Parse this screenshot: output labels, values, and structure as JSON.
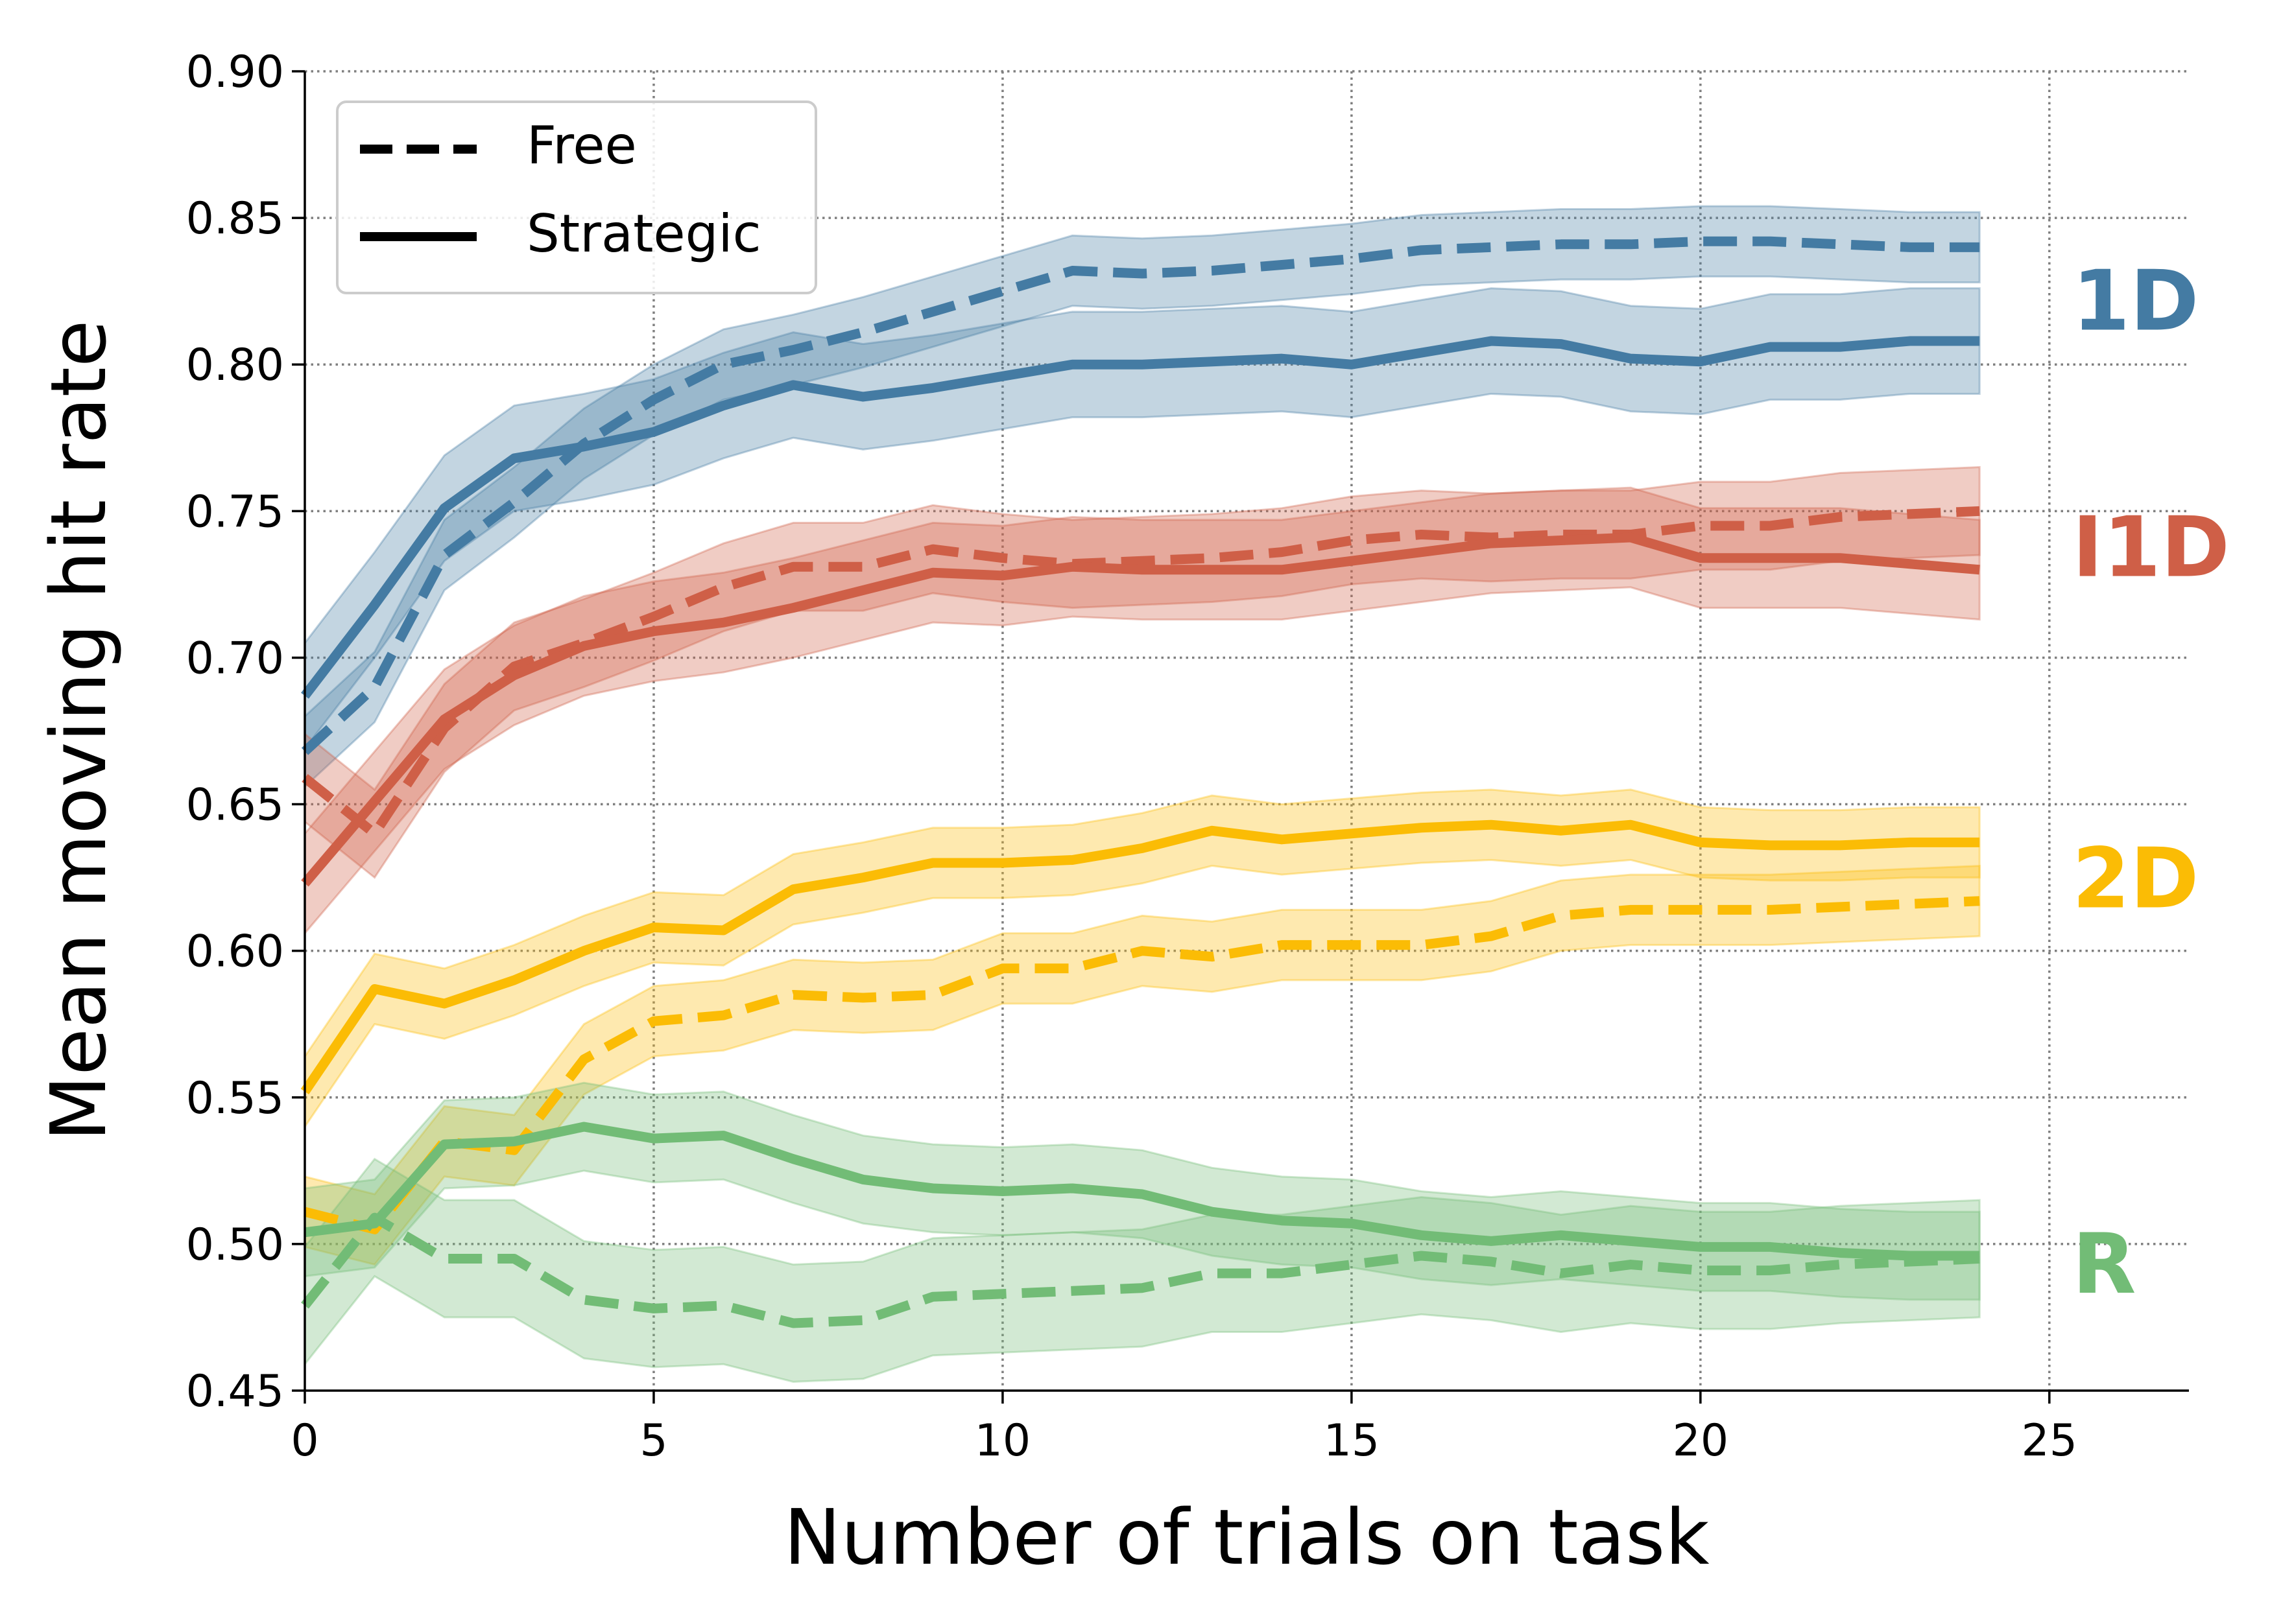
{
  "chart_data": {
    "type": "line",
    "title": "",
    "xlabel": "Number of trials on task",
    "ylabel": "Mean moving hit rate",
    "xlim": [
      0,
      27
    ],
    "ylim": [
      0.45,
      0.9
    ],
    "xticks": [
      0,
      5,
      10,
      15,
      20,
      25
    ],
    "yticks": [
      0.45,
      0.5,
      0.55,
      0.6,
      0.65,
      0.7,
      0.75,
      0.8,
      0.85,
      0.9
    ],
    "xtick_labels": [
      "0",
      "5",
      "10",
      "15",
      "20",
      "25"
    ],
    "ytick_labels": [
      "0.45",
      "0.50",
      "0.55",
      "0.60",
      "0.65",
      "0.70",
      "0.75",
      "0.80",
      "0.85",
      "0.90"
    ],
    "grid": true,
    "legend": {
      "placement": "top-left",
      "entries": [
        {
          "label": "Free",
          "style": "dashed"
        },
        {
          "label": "Strategic",
          "style": "solid"
        }
      ]
    },
    "x": [
      0,
      1,
      2,
      3,
      4,
      5,
      6,
      7,
      8,
      9,
      10,
      11,
      12,
      13,
      14,
      15,
      16,
      17,
      18,
      19,
      20,
      21,
      22,
      23,
      24
    ],
    "groups": [
      {
        "label": "1D",
        "color": "#447ba3",
        "series": [
          {
            "condition": "Free",
            "style": "dashed",
            "values": [
              0.668,
              0.69,
              0.735,
              0.753,
              0.773,
              0.788,
              0.8,
              0.805,
              0.811,
              0.818,
              0.825,
              0.832,
              0.831,
              0.832,
              0.834,
              0.836,
              0.839,
              0.84,
              0.841,
              0.841,
              0.842,
              0.842,
              0.841,
              0.84,
              0.84
            ],
            "band_half_width": 0.012
          },
          {
            "condition": "Strategic",
            "style": "solid",
            "values": [
              0.687,
              0.718,
              0.751,
              0.768,
              0.772,
              0.777,
              0.786,
              0.793,
              0.789,
              0.792,
              0.796,
              0.8,
              0.8,
              0.801,
              0.802,
              0.8,
              0.804,
              0.808,
              0.807,
              0.802,
              0.801,
              0.806,
              0.806,
              0.808,
              0.808
            ],
            "band_half_width": 0.018
          }
        ]
      },
      {
        "label": "I1D",
        "color": "#cf5f47",
        "series": [
          {
            "condition": "Free",
            "style": "dashed",
            "values": [
              0.659,
              0.64,
              0.676,
              0.697,
              0.705,
              0.714,
              0.724,
              0.731,
              0.731,
              0.737,
              0.734,
              0.732,
              0.733,
              0.734,
              0.736,
              0.74,
              0.742,
              0.741,
              0.742,
              0.742,
              0.745,
              0.745,
              0.748,
              0.749,
              0.75
            ],
            "band_half_width": 0.015
          },
          {
            "condition": "Strategic",
            "style": "solid",
            "values": [
              0.623,
              0.651,
              0.679,
              0.694,
              0.704,
              0.709,
              0.712,
              0.717,
              0.723,
              0.729,
              0.728,
              0.731,
              0.73,
              0.73,
              0.73,
              0.733,
              0.736,
              0.739,
              0.74,
              0.741,
              0.734,
              0.734,
              0.734,
              0.732,
              0.73
            ],
            "band_half_width": 0.017
          }
        ]
      },
      {
        "label": "2D",
        "color": "#fbbc05",
        "series": [
          {
            "condition": "Free",
            "style": "dashed",
            "values": [
              0.511,
              0.505,
              0.535,
              0.532,
              0.563,
              0.576,
              0.578,
              0.585,
              0.584,
              0.585,
              0.594,
              0.594,
              0.6,
              0.598,
              0.602,
              0.602,
              0.602,
              0.605,
              0.612,
              0.614,
              0.614,
              0.614,
              0.615,
              0.616,
              0.617
            ],
            "band_half_width": 0.012
          },
          {
            "condition": "Strategic",
            "style": "solid",
            "values": [
              0.552,
              0.587,
              0.582,
              0.59,
              0.6,
              0.608,
              0.607,
              0.621,
              0.625,
              0.63,
              0.63,
              0.631,
              0.635,
              0.641,
              0.638,
              0.64,
              0.642,
              0.643,
              0.641,
              0.643,
              0.637,
              0.636,
              0.636,
              0.637,
              0.637
            ],
            "band_half_width": 0.012
          }
        ]
      },
      {
        "label": "R",
        "color": "#72bc76",
        "series": [
          {
            "condition": "Free",
            "style": "dashed",
            "values": [
              0.479,
              0.509,
              0.495,
              0.495,
              0.481,
              0.478,
              0.479,
              0.473,
              0.474,
              0.482,
              0.483,
              0.484,
              0.485,
              0.49,
              0.49,
              0.493,
              0.496,
              0.494,
              0.49,
              0.493,
              0.491,
              0.491,
              0.493,
              0.494,
              0.495
            ],
            "band_half_width": 0.02
          },
          {
            "condition": "Strategic",
            "style": "solid",
            "values": [
              0.504,
              0.507,
              0.534,
              0.535,
              0.54,
              0.536,
              0.537,
              0.529,
              0.522,
              0.519,
              0.518,
              0.519,
              0.517,
              0.511,
              0.508,
              0.507,
              0.503,
              0.501,
              0.503,
              0.501,
              0.499,
              0.499,
              0.497,
              0.496,
              0.496
            ],
            "band_half_width": 0.015
          }
        ]
      }
    ]
  }
}
